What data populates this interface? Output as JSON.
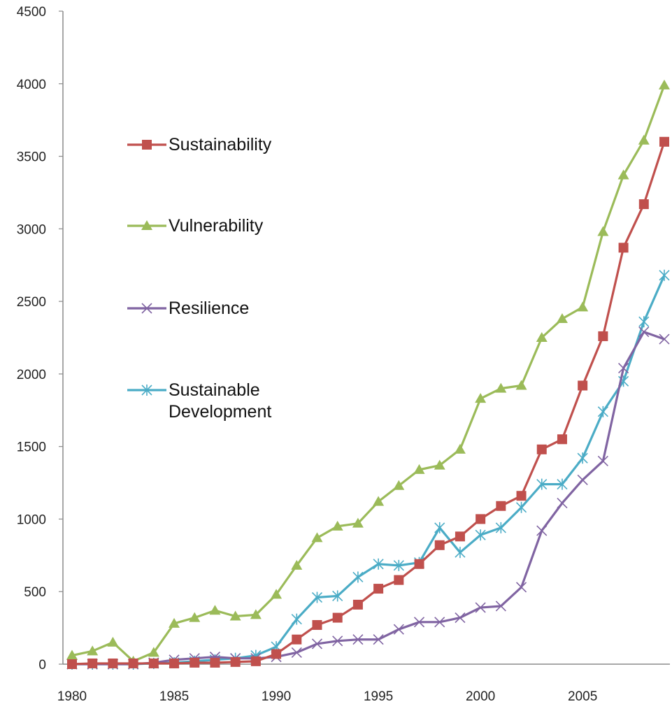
{
  "chart_data": {
    "type": "line",
    "title": "",
    "xlabel": "",
    "ylabel": "",
    "x": [
      1980,
      1981,
      1982,
      1983,
      1984,
      1985,
      1986,
      1987,
      1988,
      1989,
      1990,
      1991,
      1992,
      1993,
      1994,
      1995,
      1996,
      1997,
      1998,
      1999,
      2000,
      2001,
      2002,
      2003,
      2004,
      2005,
      2006,
      2007,
      2008,
      2009
    ],
    "xlim": [
      1980,
      2009
    ],
    "ylim": [
      0,
      4500
    ],
    "x_ticks": [
      1980,
      1985,
      1990,
      1995,
      2000,
      2005
    ],
    "y_ticks": [
      0,
      500,
      1000,
      1500,
      2000,
      2500,
      3000,
      3500,
      4000,
      4500
    ],
    "grid": false,
    "legend_position": "left",
    "series": [
      {
        "name": "Sustainability",
        "color": "#c0504d",
        "marker": "square",
        "values": [
          0,
          5,
          5,
          5,
          5,
          5,
          10,
          10,
          15,
          20,
          70,
          170,
          270,
          320,
          410,
          520,
          580,
          690,
          820,
          880,
          1000,
          1090,
          1160,
          1480,
          1550,
          1920,
          2260,
          2870,
          3170,
          3600
        ]
      },
      {
        "name": "Vulnerability",
        "color": "#9bbb59",
        "marker": "triangle",
        "values": [
          60,
          90,
          150,
          20,
          80,
          280,
          320,
          370,
          330,
          340,
          480,
          680,
          870,
          950,
          970,
          1120,
          1230,
          1340,
          1370,
          1480,
          1830,
          1900,
          1920,
          2250,
          2380,
          2460,
          2980,
          3370,
          3610,
          3990
        ]
      },
      {
        "name": "Resilience",
        "color": "#8064a2",
        "marker": "x",
        "values": [
          0,
          0,
          0,
          0,
          10,
          30,
          40,
          50,
          40,
          40,
          50,
          80,
          140,
          160,
          170,
          170,
          240,
          290,
          290,
          320,
          390,
          400,
          530,
          920,
          1110,
          1270,
          1400,
          2040,
          2290,
          2240
        ]
      },
      {
        "name": "Sustainable Development",
        "label_lines": [
          "Sustainable",
          "Development"
        ],
        "color": "#4bacc6",
        "marker": "asterisk",
        "values": [
          0,
          0,
          0,
          0,
          5,
          10,
          20,
          30,
          40,
          60,
          120,
          310,
          460,
          470,
          600,
          690,
          680,
          700,
          940,
          770,
          890,
          940,
          1080,
          1240,
          1240,
          1420,
          1740,
          1950,
          2360,
          2680
        ]
      }
    ]
  }
}
